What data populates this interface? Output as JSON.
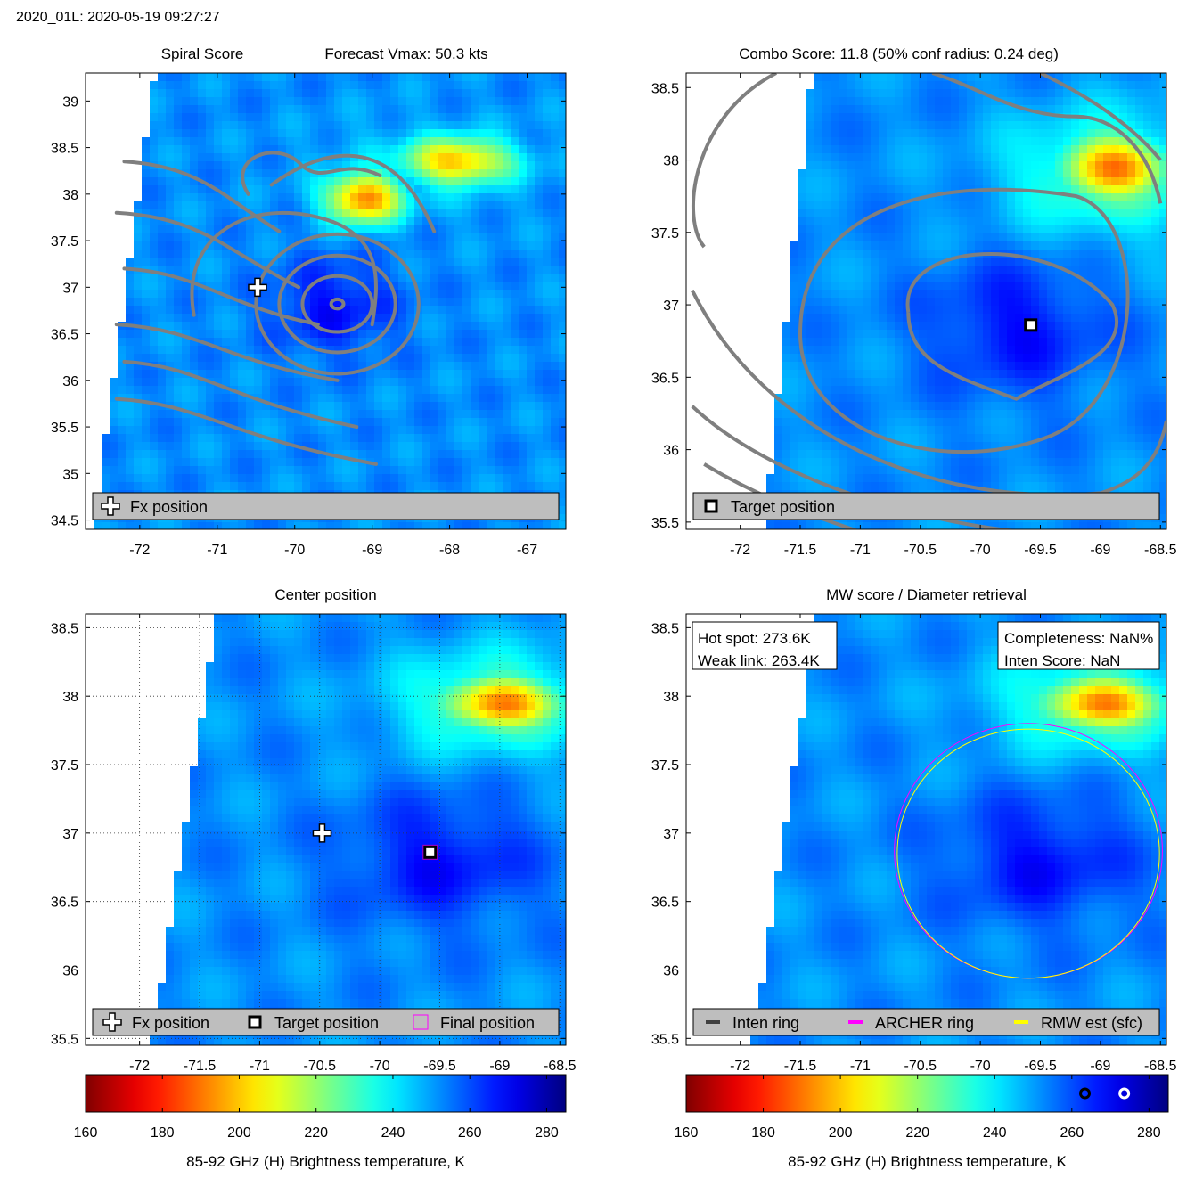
{
  "header": {
    "title": "2020_01L: 2020-05-19 09:27:27"
  },
  "colors": {
    "contour": "#7f7f7f",
    "legend_bg": "#bebebe",
    "archer": "#ff00ff",
    "rmw": "#ffff00",
    "inten": "#404040"
  },
  "chart_data": [
    {
      "type": "heatmap",
      "panel": "top-left",
      "title_left": "Spiral Score",
      "title_right": "Forecast Vmax: 50.3 kts",
      "xlim": [
        -72.7,
        -66.5
      ],
      "ylim": [
        34.4,
        39.3
      ],
      "xticks": [
        -72,
        -71,
        -70,
        -69,
        -68,
        -67
      ],
      "yticks": [
        34.5,
        35,
        35.5,
        36,
        36.5,
        37,
        37.5,
        38,
        38.5,
        39
      ],
      "xtick_labels": [
        "-72",
        "-71",
        "-70",
        "-69",
        "-68",
        "-67"
      ],
      "ytick_labels": [
        "34.5",
        "35",
        "35.5",
        "36",
        "36.5",
        "37",
        "37.5",
        "38",
        "38.5",
        "39"
      ],
      "swath_edge": [
        [
          -71.8,
          39.35
        ],
        [
          -72.6,
          34.4
        ]
      ],
      "warm_features": [
        {
          "lon": -69.1,
          "lat": 37.95,
          "rx": 0.55,
          "ry": 0.3,
          "tb": 190
        },
        {
          "lon": -67.9,
          "lat": 38.35,
          "rx": 0.8,
          "ry": 0.28,
          "tb": 198
        },
        {
          "lon": -68.3,
          "lat": 38.3,
          "rx": 1.4,
          "ry": 0.5,
          "tb": 240
        }
      ],
      "cold_features": [
        {
          "lon": -69.5,
          "lat": 36.8,
          "rx": 0.8,
          "ry": 0.5,
          "tb": 268
        }
      ],
      "markers": [
        {
          "kind": "plus",
          "lon": -70.48,
          "lat": 37.0,
          "label": "Fx position"
        }
      ],
      "legend": {
        "items": [
          "Fx position"
        ],
        "location": "bottom"
      }
    },
    {
      "type": "heatmap",
      "panel": "top-right",
      "title": "Combo Score: 11.8  (50% conf radius: 0.24 deg)",
      "xlim": [
        -72.45,
        -68.45
      ],
      "ylim": [
        35.45,
        38.6
      ],
      "xticks": [
        -72,
        -71.5,
        -71,
        -70.5,
        -70,
        -69.5,
        -69,
        -68.5
      ],
      "yticks": [
        35.5,
        36,
        36.5,
        37,
        37.5,
        38,
        38.5
      ],
      "xtick_labels": [
        "-72",
        "-71.5",
        "-71",
        "-70.5",
        "-70",
        "-69.5",
        "-69",
        "-68.5"
      ],
      "ytick_labels": [
        "35.5",
        "36",
        "36.5",
        "37",
        "37.5",
        "38",
        "38.5"
      ],
      "swath_edge": [
        [
          -71.4,
          38.6
        ],
        [
          -71.8,
          35.45
        ]
      ],
      "warm_features": [
        {
          "lon": -68.9,
          "lat": 37.95,
          "rx": 0.5,
          "ry": 0.25,
          "tb": 190
        },
        {
          "lon": -68.9,
          "lat": 37.9,
          "rx": 0.9,
          "ry": 0.45,
          "tb": 225
        }
      ],
      "cold_features": [
        {
          "lon": -69.7,
          "lat": 36.85,
          "rx": 0.7,
          "ry": 0.45,
          "tb": 268
        }
      ],
      "markers": [
        {
          "kind": "square",
          "lon": -69.58,
          "lat": 36.86,
          "label": "Target position"
        }
      ],
      "legend": {
        "items": [
          "Target position"
        ],
        "location": "bottom"
      }
    },
    {
      "type": "heatmap",
      "panel": "bottom-left",
      "title": "Center position",
      "xlim": [
        -72.45,
        -68.45
      ],
      "ylim": [
        35.45,
        38.6
      ],
      "xticks": [
        -72,
        -71.5,
        -71,
        -70.5,
        -70,
        -69.5,
        -69,
        -68.5
      ],
      "yticks": [
        35.5,
        36,
        36.5,
        37,
        37.5,
        38,
        38.5
      ],
      "xtick_labels": [
        "-72",
        "-71.5",
        "-71",
        "-70.5",
        "-70",
        "-69.5",
        "-69",
        "-68.5"
      ],
      "ytick_labels": [
        "35.5",
        "36",
        "36.5",
        "37",
        "37.5",
        "38",
        "38.5"
      ],
      "grid": true,
      "swath_edge": [
        [
          -71.35,
          38.6
        ],
        [
          -71.9,
          35.45
        ]
      ],
      "warm_features": [
        {
          "lon": -69.0,
          "lat": 37.95,
          "rx": 0.55,
          "ry": 0.22,
          "tb": 190
        },
        {
          "lon": -69.0,
          "lat": 37.95,
          "rx": 0.9,
          "ry": 0.4,
          "tb": 225
        }
      ],
      "cold_features": [
        {
          "lon": -69.5,
          "lat": 36.8,
          "rx": 0.75,
          "ry": 0.45,
          "tb": 268
        }
      ],
      "markers": [
        {
          "kind": "plus",
          "lon": -70.48,
          "lat": 37.0,
          "label": "Fx position"
        },
        {
          "kind": "square",
          "lon": -69.58,
          "lat": 36.86,
          "label": "Target position"
        },
        {
          "kind": "magenta-square",
          "lon": -69.58,
          "lat": 36.86,
          "label": "Final position"
        }
      ],
      "legend": {
        "items": [
          "Fx position",
          "Target position",
          "Final position"
        ],
        "location": "bottom"
      }
    },
    {
      "type": "heatmap",
      "panel": "bottom-right",
      "title": "MW score / Diameter retrieval",
      "xlim": [
        -72.45,
        -68.45
      ],
      "ylim": [
        35.45,
        38.6
      ],
      "xticks": [
        -72,
        -71.5,
        -71,
        -70.5,
        -70,
        -69.5,
        -69,
        -68.5
      ],
      "yticks": [
        35.5,
        36,
        36.5,
        37,
        37.5,
        38,
        38.5
      ],
      "xtick_labels": [
        "-72",
        "-71.5",
        "-71",
        "-70.5",
        "-70",
        "-69.5",
        "-69",
        "-68.5"
      ],
      "ytick_labels": [
        "35.5",
        "36",
        "36.5",
        "37",
        "37.5",
        "38",
        "38.5"
      ],
      "swath_edge": [
        [
          -71.35,
          38.6
        ],
        [
          -71.9,
          35.45
        ]
      ],
      "warm_features": [
        {
          "lon": -69.0,
          "lat": 37.95,
          "rx": 0.55,
          "ry": 0.22,
          "tb": 190
        },
        {
          "lon": -69.0,
          "lat": 37.95,
          "rx": 0.9,
          "ry": 0.4,
          "tb": 225
        }
      ],
      "cold_features": [
        {
          "lon": -69.5,
          "lat": 36.8,
          "rx": 0.75,
          "ry": 0.45,
          "tb": 268
        }
      ],
      "rings": [
        {
          "name": "ARCHER ring",
          "lon": -69.6,
          "lat": 36.87,
          "r_deg": 0.93
        },
        {
          "name": "RMW est (sfc)",
          "lon": -69.6,
          "lat": 36.85,
          "r_deg": 0.91
        }
      ],
      "info_left": [
        "Hot spot: 273.6K",
        "Weak link: 263.4K"
      ],
      "info_right": [
        "Completeness: NaN%",
        "Inten Score: NaN"
      ],
      "legend": {
        "items": [
          "Inten ring",
          "ARCHER ring",
          "RMW est (sfc)"
        ],
        "location": "bottom"
      }
    }
  ],
  "colorbars": [
    {
      "label": "85-92 GHz (H) Brightness temperature, K",
      "range": [
        160,
        285
      ],
      "ticks": [
        160,
        180,
        200,
        220,
        240,
        260,
        280
      ],
      "tick_labels": [
        "160",
        "180",
        "200",
        "220",
        "240",
        "260",
        "280"
      ]
    },
    {
      "label": "85-92 GHz (H) Brightness temperature, K",
      "range": [
        160,
        285
      ],
      "ticks": [
        160,
        180,
        200,
        220,
        240,
        260,
        280
      ],
      "tick_labels": [
        "160",
        "180",
        "200",
        "220",
        "240",
        "260",
        "280"
      ],
      "markers": [
        {
          "name": "Weak link",
          "value": 263.4
        },
        {
          "name": "Hot spot",
          "value": 273.6
        }
      ]
    }
  ]
}
